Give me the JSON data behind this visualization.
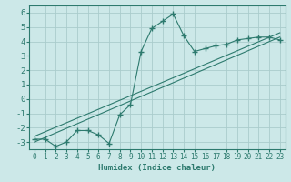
{
  "title": "",
  "xlabel": "Humidex (Indice chaleur)",
  "ylabel": "",
  "bg_color": "#cce8e8",
  "grid_color": "#aacccc",
  "line_color": "#2d7a6e",
  "xlim": [
    -0.5,
    23.5
  ],
  "ylim": [
    -3.5,
    6.5
  ],
  "xticks": [
    0,
    1,
    2,
    3,
    4,
    5,
    6,
    7,
    8,
    9,
    10,
    11,
    12,
    13,
    14,
    15,
    16,
    17,
    18,
    19,
    20,
    21,
    22,
    23
  ],
  "yticks": [
    -3,
    -2,
    -1,
    0,
    1,
    2,
    3,
    4,
    5,
    6
  ],
  "data_x": [
    0,
    1,
    2,
    3,
    4,
    5,
    6,
    7,
    8,
    9,
    10,
    11,
    12,
    13,
    14,
    15,
    16,
    17,
    18,
    19,
    20,
    21,
    22,
    23
  ],
  "data_y": [
    -2.8,
    -2.8,
    -3.3,
    -3.0,
    -2.2,
    -2.2,
    -2.5,
    -3.1,
    -1.1,
    -0.4,
    3.3,
    4.9,
    5.4,
    5.9,
    4.4,
    3.3,
    3.5,
    3.7,
    3.8,
    4.1,
    4.2,
    4.3,
    4.3,
    4.1
  ],
  "trend1_x": [
    0,
    23
  ],
  "trend1_y": [
    -3.0,
    4.3
  ],
  "trend2_x": [
    0,
    23
  ],
  "trend2_y": [
    -2.6,
    4.6
  ]
}
